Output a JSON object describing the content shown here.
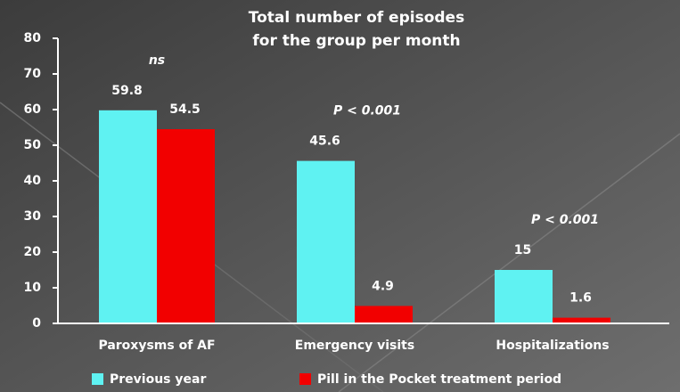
{
  "chart_data": {
    "type": "bar",
    "title": [
      "Total number of episodes",
      "for the group per month"
    ],
    "categories": [
      "Paroxysms of AF",
      "Emergency visits",
      "Hospitalizations"
    ],
    "series": [
      {
        "name": "Previous year",
        "color": "#5ff2f2",
        "values": [
          59.8,
          45.6,
          15
        ]
      },
      {
        "name": "Pill in the Pocket treatment period",
        "color": "#f20000",
        "values": [
          54.5,
          4.9,
          1.6
        ]
      }
    ],
    "annotations": [
      "ns",
      "P < 0.001",
      "P < 0.001"
    ],
    "ylim": [
      0,
      80
    ],
    "yticks": [
      0,
      10,
      20,
      30,
      40,
      50,
      60,
      70,
      80
    ],
    "grid": false,
    "legend": "bottom"
  }
}
